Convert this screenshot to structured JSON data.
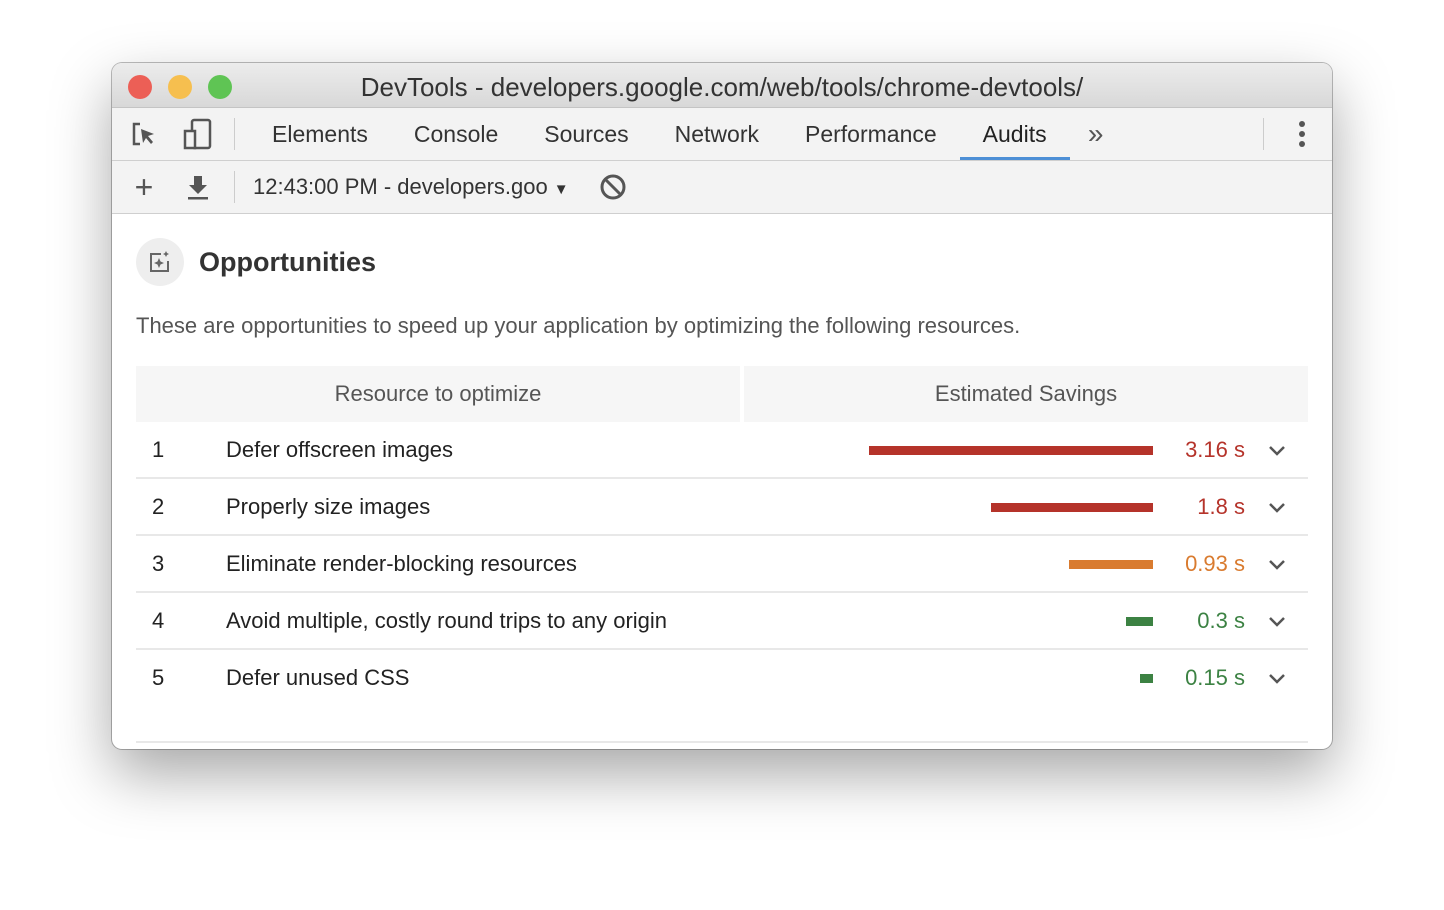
{
  "window": {
    "title": "DevTools - developers.google.com/web/tools/chrome-devtools/"
  },
  "tabs": [
    {
      "label": "Elements"
    },
    {
      "label": "Console"
    },
    {
      "label": "Sources"
    },
    {
      "label": "Network"
    },
    {
      "label": "Performance"
    },
    {
      "label": "Audits",
      "active": true
    }
  ],
  "toolbar": {
    "report_select": "12:43:00 PM - developers.goo"
  },
  "section": {
    "title": "Opportunities",
    "description": "These are opportunities to speed up your application by optimizing the following resources.",
    "columns": [
      "Resource to optimize",
      "Estimated Savings"
    ],
    "rows": [
      {
        "index": "1",
        "name": "Defer offscreen images",
        "savings": "3.16 s",
        "seconds": 3.16,
        "color": "#b5332a"
      },
      {
        "index": "2",
        "name": "Properly size images",
        "savings": "1.8 s",
        "seconds": 1.8,
        "color": "#b5332a"
      },
      {
        "index": "3",
        "name": "Eliminate render-blocking resources",
        "savings": "0.93 s",
        "seconds": 0.93,
        "color": "#d97b2f"
      },
      {
        "index": "4",
        "name": "Avoid multiple, costly round trips to any origin",
        "savings": "0.3 s",
        "seconds": 0.3,
        "color": "#3c8243"
      },
      {
        "index": "5",
        "name": "Defer unused CSS",
        "savings": "0.15 s",
        "seconds": 0.15,
        "color": "#3c8243"
      }
    ]
  }
}
